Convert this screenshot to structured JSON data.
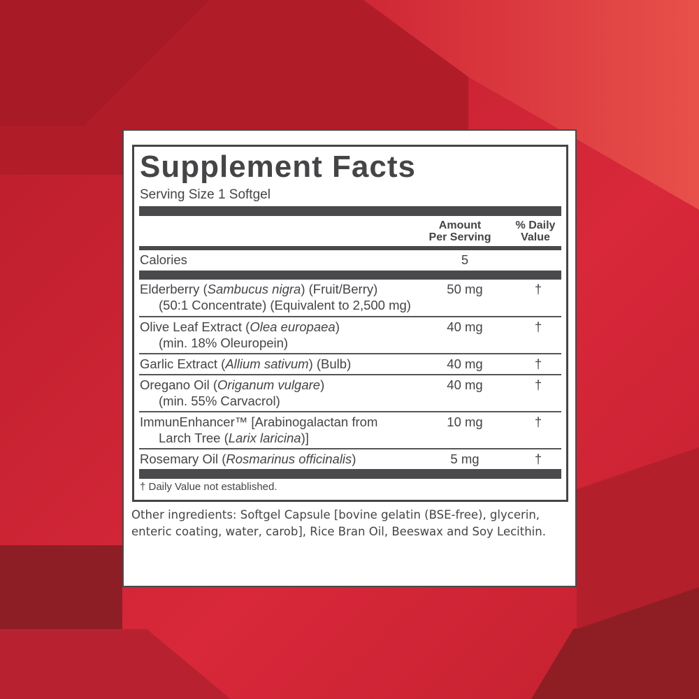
{
  "colors": {
    "background_red": "#c8202f",
    "dark_red": "#8f1d24",
    "label_ink": "#454545"
  },
  "label": {
    "title": "Supplement Facts",
    "serving_size": "Serving Size 1 Softgel",
    "header_amount_line1": "Amount",
    "header_amount_line2": "Per Serving",
    "header_dv_line1": "% Daily",
    "header_dv_line2": "Value",
    "calories_label": "Calories",
    "calories_value": "5",
    "ingredients": [
      {
        "line1": [
          {
            "t": "Elderberry ("
          },
          {
            "t": "Sambucus nigra",
            "i": true
          },
          {
            "t": ") (Fruit/Berry)"
          }
        ],
        "line2": [
          {
            "t": "(50:1 Concentrate) (Equivalent to 2,500 mg)"
          }
        ],
        "amount": "50 mg",
        "dv": "†"
      },
      {
        "line1": [
          {
            "t": "Olive Leaf Extract ("
          },
          {
            "t": "Olea europaea",
            "i": true
          },
          {
            "t": ")"
          }
        ],
        "line2": [
          {
            "t": "(min. 18% Oleuropein)"
          }
        ],
        "amount": "40 mg",
        "dv": "†"
      },
      {
        "line1": [
          {
            "t": "Garlic Extract ("
          },
          {
            "t": "Allium sativum",
            "i": true
          },
          {
            "t": ") (Bulb)"
          }
        ],
        "line2": [],
        "amount": "40 mg",
        "dv": "†"
      },
      {
        "line1": [
          {
            "t": "Oregano Oil ("
          },
          {
            "t": "Origanum vulgare",
            "i": true
          },
          {
            "t": ")"
          }
        ],
        "line2": [
          {
            "t": "(min. 55% Carvacrol)"
          }
        ],
        "amount": "40 mg",
        "dv": "†"
      },
      {
        "line1": [
          {
            "t": "ImmunEnhancer™ [Arabinogalactan from"
          }
        ],
        "line2": [
          {
            "t": "Larch Tree ("
          },
          {
            "t": "Larix laricina",
            "i": true
          },
          {
            "t": ")]"
          }
        ],
        "amount": "10 mg",
        "dv": "†"
      },
      {
        "line1": [
          {
            "t": "Rosemary Oil ("
          },
          {
            "t": "Rosmarinus officinalis",
            "i": true
          },
          {
            "t": ")"
          }
        ],
        "line2": [],
        "amount": "5 mg",
        "dv": "†"
      }
    ],
    "footnote": "† Daily Value not established."
  },
  "other_ingredients": "Other ingredients: Softgel Capsule [bovine gelatin (BSE-free), glycerin, enteric coating, water, carob], Rice Bran Oil, Beeswax and Soy Lecithin."
}
